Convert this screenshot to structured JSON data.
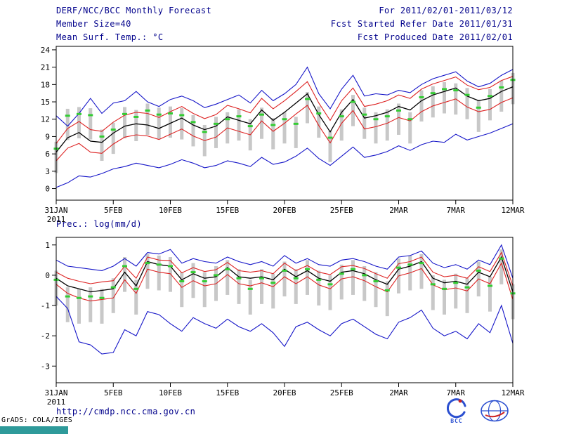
{
  "header": {
    "title": "DERF/NCC/BCC Monthly Forecast",
    "member_size": "Member Size=40",
    "for_range": "For 2011/02/01-2011/03/12",
    "refer_date": "Fcst Started Refer Date 2011/01/31",
    "produced_date": "Fcst Produced Date 2011/02/01"
  },
  "footer": {
    "url": "http://cmdp.ncc.cma.gov.cn",
    "grads_credit": "GrADS: COLA/IGES",
    "bcc_label": "BCC"
  },
  "colors": {
    "header_text": "#00008b",
    "ensemble_minmax": "#1515c8",
    "ensemble_sigma": "#dd2222",
    "ensemble_mean": "#000000",
    "observation": "#33cc33",
    "spread_bar": "#c8c8c8",
    "taskbar": "#2e9a9a"
  },
  "chart_data": [
    {
      "id": "temperature",
      "type": "line",
      "title": "Mean Surf. Temp.: °C",
      "ylabel": "",
      "ylim": [
        0,
        24
      ],
      "yticks": [
        0,
        3,
        6,
        9,
        12,
        15,
        18,
        21,
        24
      ],
      "x_tick_labels": [
        "31JAN",
        "5FEB",
        "10FEB",
        "15FEB",
        "20FEB",
        "25FEB",
        "2MAR",
        "7MAR",
        "12MAR"
      ],
      "x_tick_positions": [
        0,
        5,
        10,
        15,
        20,
        25,
        30,
        35,
        40
      ],
      "x_year_label": "2011",
      "n_days": 41,
      "grid": false,
      "legend": "none",
      "series": [
        {
          "name": "ensemble-max",
          "color": "#1515c8",
          "width": 1.1,
          "values": [
            12.6,
            10.8,
            13.0,
            15.6,
            13.0,
            14.8,
            15.2,
            16.8,
            15.0,
            14.2,
            15.4,
            16.0,
            15.2,
            14.0,
            14.6,
            15.4,
            16.2,
            14.8,
            17.0,
            15.2,
            16.4,
            18.0,
            21.0,
            16.4,
            13.8,
            17.2,
            19.6,
            16.0,
            16.4,
            16.2,
            17.0,
            16.6,
            18.0,
            19.0,
            19.6,
            20.2,
            18.6,
            17.6,
            18.2,
            19.6,
            20.6
          ]
        },
        {
          "name": "plus-sigma",
          "color": "#dd2222",
          "width": 1.1,
          "values": [
            7.8,
            10.4,
            11.6,
            10.2,
            9.9,
            11.5,
            12.7,
            13.2,
            13.0,
            12.3,
            13.3,
            14.2,
            13.0,
            12.1,
            12.8,
            14.4,
            13.8,
            13.1,
            15.6,
            13.8,
            15.2,
            16.8,
            18.5,
            14.8,
            11.8,
            15.2,
            17.4,
            14.2,
            14.6,
            15.2,
            16.2,
            15.6,
            17.2,
            18.1,
            18.7,
            19.3,
            17.9,
            17.1,
            17.5,
            18.7,
            19.4
          ]
        },
        {
          "name": "ensemble-mean",
          "color": "#000000",
          "width": 1.3,
          "values": [
            6.3,
            8.8,
            9.7,
            8.2,
            8.0,
            9.6,
            10.8,
            11.2,
            11.0,
            10.4,
            11.3,
            12.2,
            11.0,
            10.2,
            10.8,
            12.4,
            11.8,
            11.2,
            13.6,
            11.8,
            13.2,
            14.8,
            16.4,
            12.8,
            9.8,
            13.2,
            15.4,
            12.2,
            12.6,
            13.2,
            14.2,
            13.6,
            15.2,
            16.2,
            16.8,
            17.4,
            16.0,
            15.2,
            15.6,
            16.8,
            17.6
          ]
        },
        {
          "name": "minus-sigma",
          "color": "#dd2222",
          "width": 1.1,
          "values": [
            4.8,
            7.0,
            7.8,
            6.3,
            6.1,
            7.7,
            8.9,
            9.3,
            9.1,
            8.5,
            9.4,
            10.3,
            9.1,
            8.3,
            8.9,
            10.5,
            9.9,
            9.3,
            11.7,
            9.9,
            11.3,
            12.9,
            14.4,
            10.9,
            7.9,
            11.3,
            13.5,
            10.3,
            10.7,
            11.3,
            12.3,
            11.7,
            13.3,
            14.3,
            14.9,
            15.5,
            14.1,
            13.3,
            13.7,
            14.9,
            15.7
          ]
        },
        {
          "name": "ensemble-min",
          "color": "#1515c8",
          "width": 1.1,
          "values": [
            0.2,
            1.0,
            2.2,
            2.0,
            2.6,
            3.4,
            3.8,
            4.4,
            4.0,
            3.6,
            4.2,
            5.0,
            4.4,
            3.6,
            4.0,
            4.8,
            4.4,
            3.8,
            5.4,
            4.2,
            4.6,
            5.6,
            7.0,
            5.2,
            4.0,
            5.6,
            7.2,
            5.4,
            5.8,
            6.4,
            7.4,
            6.6,
            7.6,
            8.2,
            8.0,
            9.4,
            8.4,
            9.0,
            9.6,
            10.4,
            11.2
          ]
        }
      ],
      "bars": {
        "name": "ensemble-spread",
        "color": "#c8c8c8",
        "high": [
          8.1,
          13.8,
          14.1,
          13.9,
          10.2,
          11.4,
          14.1,
          13.6,
          14.7,
          14.0,
          14.2,
          13.9,
          12.7,
          11.0,
          12.4,
          13.2,
          13.7,
          12.0,
          14.0,
          12.2,
          13.2,
          12.4,
          16.7,
          14.2,
          10.0,
          13.7,
          16.2,
          14.0,
          13.2,
          13.7,
          14.7,
          13.2,
          17.0,
          17.7,
          18.4,
          18.2,
          17.4,
          15.2,
          17.2,
          18.7,
          20.0
        ],
        "low": [
          2.7,
          8.4,
          8.7,
          8.5,
          4.8,
          6.0,
          8.7,
          8.2,
          9.3,
          8.6,
          8.8,
          8.5,
          7.3,
          5.6,
          7.0,
          7.8,
          8.3,
          6.6,
          8.6,
          6.8,
          7.8,
          7.0,
          11.3,
          8.8,
          4.6,
          8.3,
          10.8,
          8.6,
          7.8,
          8.3,
          9.3,
          7.8,
          11.6,
          12.3,
          13.0,
          12.8,
          12.0,
          9.8,
          11.8,
          13.3,
          14.6
        ]
      },
      "markers": {
        "name": "observation",
        "color": "#33cc33",
        "values": [
          6.9,
          12.6,
          12.9,
          12.7,
          9.0,
          10.2,
          12.9,
          12.4,
          13.5,
          12.8,
          13.0,
          12.7,
          11.5,
          9.8,
          11.2,
          12.0,
          12.5,
          10.8,
          12.8,
          11.0,
          12.0,
          11.2,
          15.5,
          13.0,
          8.8,
          12.5,
          15.0,
          12.8,
          12.0,
          12.5,
          13.5,
          12.0,
          15.8,
          16.5,
          17.2,
          17.0,
          16.2,
          14.0,
          16.0,
          17.5,
          18.8
        ]
      }
    },
    {
      "id": "precipitation",
      "type": "line",
      "title": "Prec.: log(mm/d)",
      "ylabel": "",
      "ylim": [
        -3,
        1
      ],
      "yticks": [
        -3,
        -2,
        -1,
        0,
        1
      ],
      "x_tick_labels": [
        "31JAN",
        "5FEB",
        "10FEB",
        "15FEB",
        "20FEB",
        "25FEB",
        "2MAR",
        "7MAR",
        "12MAR"
      ],
      "x_tick_positions": [
        0,
        5,
        10,
        15,
        20,
        25,
        30,
        35,
        40
      ],
      "x_year_label": "2011",
      "n_days": 41,
      "grid": false,
      "legend": "none",
      "series": [
        {
          "name": "ensemble-max",
          "color": "#1515c8",
          "width": 1.1,
          "values": [
            0.5,
            0.3,
            0.25,
            0.2,
            0.15,
            0.3,
            0.55,
            0.3,
            0.75,
            0.7,
            0.85,
            0.4,
            0.55,
            0.45,
            0.4,
            0.6,
            0.45,
            0.35,
            0.45,
            0.3,
            0.65,
            0.4,
            0.55,
            0.35,
            0.3,
            0.5,
            0.55,
            0.45,
            0.3,
            0.2,
            0.6,
            0.65,
            0.8,
            0.4,
            0.25,
            0.35,
            0.2,
            0.5,
            0.35,
            1.0,
            -0.1
          ]
        },
        {
          "name": "plus-sigma",
          "color": "#dd2222",
          "width": 1.1,
          "values": [
            0.1,
            -0.1,
            -0.2,
            -0.28,
            -0.22,
            -0.18,
            0.3,
            -0.1,
            0.6,
            0.5,
            0.48,
            0.08,
            0.25,
            0.12,
            0.18,
            0.42,
            0.15,
            0.1,
            0.15,
            0.05,
            0.4,
            0.15,
            0.32,
            0.1,
            0.02,
            0.28,
            0.32,
            0.22,
            0.05,
            -0.1,
            0.38,
            0.45,
            0.6,
            0.1,
            -0.05,
            0.0,
            -0.1,
            0.28,
            0.12,
            0.75,
            -0.35
          ]
        },
        {
          "name": "ensemble-mean",
          "color": "#000000",
          "width": 1.3,
          "values": [
            -0.1,
            -0.35,
            -0.45,
            -0.55,
            -0.5,
            -0.45,
            0.1,
            -0.35,
            0.45,
            0.35,
            0.3,
            -0.15,
            0.05,
            -0.1,
            -0.05,
            0.25,
            -0.05,
            -0.1,
            -0.05,
            -0.15,
            0.2,
            -0.05,
            0.15,
            -0.1,
            -0.2,
            0.1,
            0.15,
            0.05,
            -0.15,
            -0.3,
            0.2,
            0.3,
            0.45,
            -0.1,
            -0.25,
            -0.2,
            -0.3,
            0.1,
            -0.05,
            0.6,
            -0.55
          ]
        },
        {
          "name": "minus-sigma",
          "color": "#dd2222",
          "width": 1.1,
          "values": [
            -0.3,
            -0.6,
            -0.75,
            -0.85,
            -0.8,
            -0.75,
            -0.15,
            -0.6,
            0.2,
            0.1,
            0.05,
            -0.4,
            -0.18,
            -0.35,
            -0.28,
            0.02,
            -0.28,
            -0.35,
            -0.25,
            -0.38,
            -0.05,
            -0.28,
            -0.05,
            -0.32,
            -0.45,
            -0.12,
            -0.05,
            -0.18,
            -0.38,
            -0.55,
            -0.02,
            0.08,
            0.22,
            -0.32,
            -0.48,
            -0.42,
            -0.52,
            -0.12,
            -0.28,
            0.4,
            -0.8
          ]
        },
        {
          "name": "ensemble-min",
          "color": "#1515c8",
          "width": 1.1,
          "values": [
            -0.7,
            -1.1,
            -2.2,
            -2.3,
            -2.6,
            -2.55,
            -1.8,
            -2.0,
            -1.2,
            -1.3,
            -1.6,
            -1.85,
            -1.4,
            -1.6,
            -1.75,
            -1.45,
            -1.7,
            -1.85,
            -1.6,
            -1.9,
            -2.35,
            -1.7,
            -1.55,
            -1.8,
            -2.0,
            -1.6,
            -1.45,
            -1.7,
            -1.95,
            -2.1,
            -1.55,
            -1.4,
            -1.15,
            -1.75,
            -2.0,
            -1.85,
            -2.1,
            -1.6,
            -1.9,
            -1.0,
            -2.25
          ]
        }
      ],
      "bars": {
        "name": "ensemble-spread",
        "color": "#c8c8c8",
        "high": [
          0.15,
          -0.4,
          -0.45,
          -0.4,
          -0.45,
          -0.1,
          0.6,
          -0.15,
          0.7,
          0.65,
          0.6,
          0.1,
          0.4,
          0.1,
          0.3,
          0.5,
          0.2,
          -0.15,
          0.2,
          0.05,
          0.45,
          0.2,
          0.5,
          0.15,
          0.0,
          0.35,
          0.5,
          0.3,
          0.1,
          -0.2,
          0.55,
          0.65,
          0.7,
          0.0,
          -0.15,
          0.05,
          -0.1,
          0.45,
          -0.05,
          0.85,
          -0.3
        ],
        "low": [
          -1.0,
          -1.55,
          -1.6,
          -1.55,
          -1.6,
          -1.25,
          -0.55,
          -1.3,
          -0.45,
          -0.5,
          -0.55,
          -1.05,
          -0.75,
          -1.05,
          -0.85,
          -0.65,
          -0.95,
          -1.3,
          -0.95,
          -1.1,
          -0.7,
          -0.95,
          -0.65,
          -1.0,
          -1.15,
          -0.8,
          -0.65,
          -0.85,
          -1.05,
          -1.35,
          -0.6,
          -0.5,
          -0.45,
          -1.15,
          -1.3,
          -1.1,
          -1.25,
          -0.7,
          -1.2,
          -0.3,
          -1.45
        ]
      },
      "markers": {
        "name": "observation",
        "color": "#33cc33",
        "values": [
          -0.15,
          -0.7,
          -0.75,
          -0.7,
          -0.75,
          -0.4,
          0.3,
          -0.45,
          0.4,
          0.35,
          0.3,
          -0.2,
          0.1,
          -0.2,
          0.0,
          0.2,
          -0.1,
          -0.45,
          -0.1,
          -0.25,
          0.15,
          -0.1,
          0.2,
          -0.15,
          -0.3,
          0.05,
          0.2,
          0.0,
          -0.2,
          -0.5,
          0.25,
          0.35,
          0.4,
          -0.3,
          -0.45,
          -0.25,
          -0.4,
          0.15,
          -0.35,
          0.55,
          -0.6
        ]
      }
    }
  ]
}
